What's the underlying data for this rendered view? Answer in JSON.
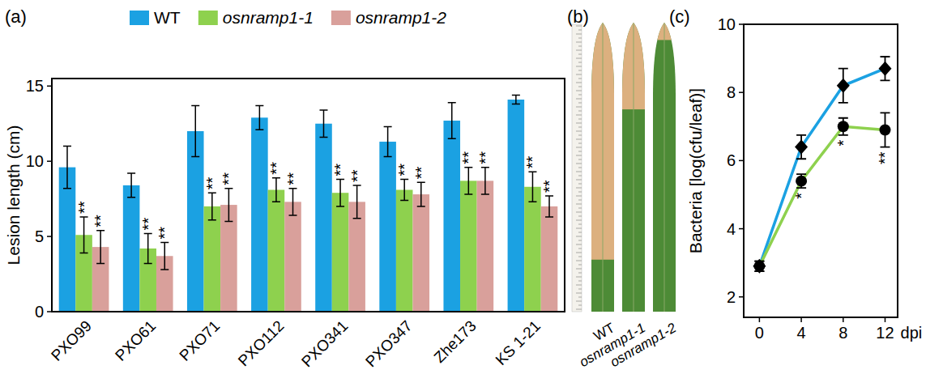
{
  "chart_data": [
    {
      "type": "bar",
      "panel": "(a)",
      "y_label": "Lesion length (cm)",
      "categories": [
        "PXO99",
        "PXO61",
        "PXO71",
        "PXO112",
        "PXO341",
        "PXO347",
        "Zhe173",
        "KS 1-21"
      ],
      "series": [
        {
          "name": "WT",
          "color": "#1ba1e2",
          "values": [
            9.6,
            8.4,
            12.0,
            12.9,
            12.5,
            11.3,
            12.7,
            14.1
          ],
          "errors": [
            1.4,
            0.8,
            1.7,
            0.8,
            0.9,
            1.0,
            1.2,
            0.3
          ]
        },
        {
          "name": "osnramp1-1",
          "color": "#8ed14e",
          "values": [
            5.1,
            4.2,
            7.0,
            8.1,
            7.9,
            8.1,
            8.7,
            8.3
          ],
          "errors": [
            1.2,
            1.0,
            0.9,
            0.8,
            0.9,
            0.7,
            0.9,
            1.0
          ],
          "annotations": [
            "**",
            "**",
            "**",
            "**",
            "**",
            "**",
            "**",
            "**"
          ]
        },
        {
          "name": "osnramp1-2",
          "color": "#d9a09b",
          "values": [
            4.3,
            3.7,
            7.1,
            7.3,
            7.3,
            7.8,
            8.7,
            7.0
          ],
          "errors": [
            1.1,
            0.9,
            1.1,
            0.9,
            1.1,
            0.8,
            0.9,
            0.7
          ],
          "annotations": [
            "**",
            "**",
            "**",
            "**",
            "**",
            "**",
            "**",
            "**"
          ]
        }
      ],
      "ylim": [
        0,
        15.5
      ],
      "yticks": [
        0,
        5,
        10,
        15
      ],
      "legend": "top",
      "grid": false
    },
    {
      "type": "line",
      "panel": "(c)",
      "x_label": "dpi",
      "y_label": "Bacteria [log(cfu/leaf)]",
      "x": [
        0,
        4,
        8,
        12
      ],
      "series": [
        {
          "color": "#1ba1e2",
          "marker": "diamond",
          "values": [
            2.9,
            6.4,
            8.2,
            8.7
          ],
          "errors": [
            0.15,
            0.35,
            0.5,
            0.35
          ]
        },
        {
          "color": "#8ed14e",
          "marker": "circle",
          "values": [
            2.9,
            5.4,
            7.0,
            6.9
          ],
          "errors": [
            0.15,
            0.2,
            0.25,
            0.5
          ],
          "annotations": [
            null,
            "*",
            "*",
            "**"
          ]
        }
      ],
      "xlim": [
        -1.5,
        13.2
      ],
      "ylim": [
        1.4,
        10
      ],
      "xticks": [
        0,
        4,
        8,
        12
      ],
      "yticks": [
        2,
        4,
        6,
        8,
        10
      ],
      "grid": false
    }
  ],
  "photo": {
    "panel": "(b)",
    "labels": [
      "WT",
      "osnramp1-1",
      "osnramp1-2"
    ]
  }
}
